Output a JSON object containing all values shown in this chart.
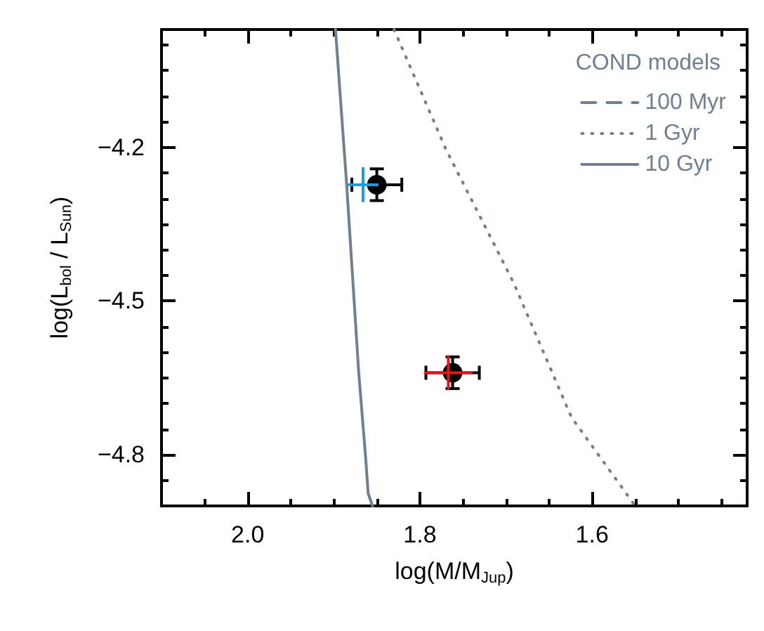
{
  "chart_data": {
    "type": "scatter",
    "xlabel": "log(M/M$_{Jup}$)",
    "ylabel": "log(L$_{bol}$ / L$_{Sun}$)",
    "legend_title": "COND models",
    "legend": "top right",
    "grid": false,
    "xlim": [
      2.1,
      1.42
    ],
    "ylim": [
      -4.9,
      -3.97
    ],
    "xticks": [
      {
        "value": 2.05,
        "label": null
      },
      {
        "value": 2,
        "label": "2.0"
      },
      {
        "value": 1.95,
        "label": null
      },
      {
        "value": 1.9,
        "label": null
      },
      {
        "value": 1.85,
        "label": null
      },
      {
        "value": 1.8,
        "label": "1.8"
      },
      {
        "value": 1.75,
        "label": null
      },
      {
        "value": 1.7,
        "label": null
      },
      {
        "value": 1.65,
        "label": null
      },
      {
        "value": 1.6,
        "label": "1.6"
      },
      {
        "value": 1.55,
        "label": null
      },
      {
        "value": 1.5,
        "label": null
      },
      {
        "value": 1.45,
        "label": null
      }
    ],
    "yticks": [
      {
        "value": -4.85,
        "label": null
      },
      {
        "value": -4.8,
        "label": "−4.8"
      },
      {
        "value": -4.75,
        "label": null
      },
      {
        "value": -4.7,
        "label": null
      },
      {
        "value": -4.65,
        "label": null
      },
      {
        "value": -4.6,
        "label": null
      },
      {
        "value": -4.55,
        "label": null
      },
      {
        "value": -4.5,
        "label": "−4.5"
      },
      {
        "value": -4.45,
        "label": null
      },
      {
        "value": -4.4,
        "label": null
      },
      {
        "value": -4.35,
        "label": null
      },
      {
        "value": -4.3,
        "label": null
      },
      {
        "value": -4.25,
        "label": null
      },
      {
        "value": -4.2,
        "label": "−4.2"
      },
      {
        "value": -4.15,
        "label": null
      },
      {
        "value": -4.1,
        "label": null
      },
      {
        "value": -4.05,
        "label": null
      },
      {
        "value": -4.0,
        "label": null
      }
    ],
    "series": [
      {
        "name": "100 Myr",
        "type": "line",
        "line_style": "dashed",
        "color": "#708090"
      },
      {
        "name": "1 Gyr",
        "type": "line",
        "line_style": "dotted",
        "color": "#708090",
        "x": [
          1.83,
          1.77,
          1.691,
          1.624,
          1.55
        ],
        "values": [
          -3.97,
          -4.203,
          -4.465,
          -4.727,
          -4.9
        ]
      },
      {
        "name": "10 Gyr",
        "type": "line",
        "line_style": "solid",
        "color": "#708090",
        "x": [
          1.898,
          1.885,
          1.871,
          1.863,
          1.86,
          1.855
        ],
        "values": [
          -3.97,
          -4.273,
          -4.64,
          -4.805,
          -4.876,
          -4.9
        ]
      },
      {
        "marker": "circle",
        "color": "#000000",
        "x": [
          1.85,
          1.762
        ],
        "values": [
          -4.273,
          -4.64
        ],
        "errors": [
          0.031,
          0.031
        ],
        "xerrors": [
          0.029,
          0.031
        ]
      },
      {
        "marker": "none",
        "color": "#1e9be8",
        "x": [
          1.866
        ],
        "values": [
          -4.273
        ],
        "errors": [
          0.034
        ],
        "xerrors": [
          0.018
        ]
      },
      {
        "marker": "none",
        "color": "#e8141b",
        "x": [
          1.767
        ],
        "values": [
          -4.64
        ],
        "errors": [
          0.033
        ],
        "xerrors": [
          0.028
        ]
      }
    ]
  }
}
